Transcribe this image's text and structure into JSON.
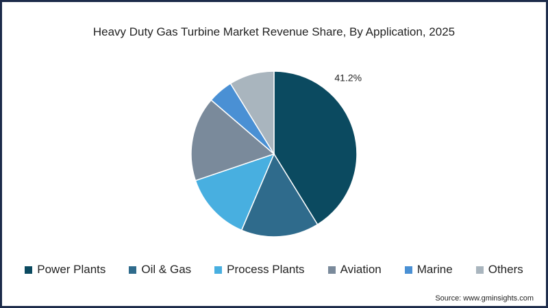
{
  "chart_data": {
    "type": "pie",
    "title": "Heavy Duty Gas Turbine Market Revenue Share, By Application, 2025",
    "categories": [
      "Power Plants",
      "Oil & Gas",
      "Process Plants",
      "Aviation",
      "Marine",
      "Others"
    ],
    "values": [
      41.2,
      15.2,
      13.4,
      16.5,
      4.9,
      8.8
    ],
    "unit": "%",
    "data_labels": [
      {
        "category": "Power Plants",
        "text": "41.2%"
      }
    ],
    "colors": [
      "#0b4a60",
      "#2f6b8c",
      "#48afe0",
      "#7a8a9b",
      "#4a90d4",
      "#a9b5be"
    ],
    "legend": "bottom",
    "start_angle_deg": 0,
    "direction": "clockwise"
  },
  "source": "Source: www.gminsights.com"
}
